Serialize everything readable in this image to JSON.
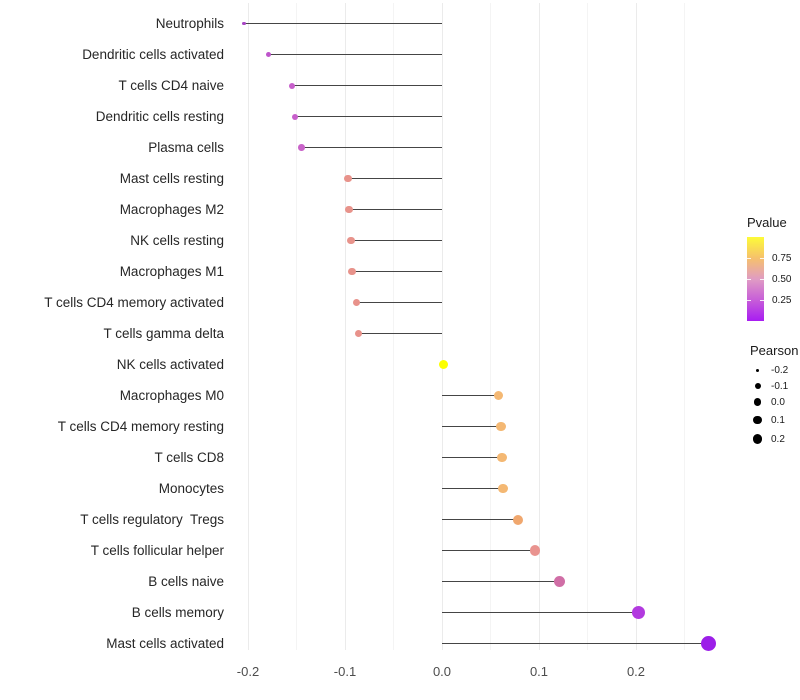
{
  "chart_data": {
    "type": "lollipop",
    "title": "",
    "xlabel": "",
    "ylabel": "",
    "xlim": [
      -0.228,
      0.3
    ],
    "grid": "vertical major+minor, light gray on white",
    "x_ticks": [
      {
        "label": "-0.2",
        "value": -0.2
      },
      {
        "label": "-0.1",
        "value": -0.1
      },
      {
        "label": "0.0",
        "value": 0.0
      },
      {
        "label": "0.1",
        "value": 0.1
      },
      {
        "label": "0.2",
        "value": 0.2
      }
    ],
    "x_minor_ticks": [
      -0.15,
      -0.05,
      0.05,
      0.15,
      0.25
    ],
    "rows": [
      {
        "label": "Neutrophils",
        "pearson": -0.204,
        "dot_color": "#a846c4",
        "dot_size": 3.5
      },
      {
        "label": "Dendritic cells activated",
        "pearson": -0.179,
        "dot_color": "#be54cb",
        "dot_size": 5
      },
      {
        "label": "T cells CD4 naive",
        "pearson": -0.155,
        "dot_color": "#c75fcb",
        "dot_size": 6
      },
      {
        "label": "Dendritic cells resting",
        "pearson": -0.152,
        "dot_color": "#c75fcb",
        "dot_size": 6
      },
      {
        "label": "Plasma cells",
        "pearson": -0.145,
        "dot_color": "#c964c9",
        "dot_size": 6.5
      },
      {
        "label": "Mast cells resting",
        "pearson": -0.097,
        "dot_color": "#e8938b",
        "dot_size": 7.5
      },
      {
        "label": "Macrophages M2",
        "pearson": -0.096,
        "dot_color": "#e8938b",
        "dot_size": 7.5
      },
      {
        "label": "NK cells resting",
        "pearson": -0.094,
        "dot_color": "#e8938b",
        "dot_size": 7.5
      },
      {
        "label": "Macrophages M1",
        "pearson": -0.093,
        "dot_color": "#e8938b",
        "dot_size": 7.5
      },
      {
        "label": "T cells CD4 memory activated",
        "pearson": -0.088,
        "dot_color": "#e8928b",
        "dot_size": 7.5
      },
      {
        "label": "T cells gamma delta",
        "pearson": -0.086,
        "dot_color": "#e8928b",
        "dot_size": 7.5
      },
      {
        "label": "NK cells activated",
        "pearson": 0.002,
        "dot_color": "#fcff00",
        "dot_size": 9
      },
      {
        "label": "Macrophages M0",
        "pearson": 0.058,
        "dot_color": "#f4b873",
        "dot_size": 9.5
      },
      {
        "label": "T cells CD4 memory resting",
        "pearson": 0.061,
        "dot_color": "#f4b873",
        "dot_size": 9.5
      },
      {
        "label": "T cells CD8",
        "pearson": 0.062,
        "dot_color": "#f4b873",
        "dot_size": 9.5
      },
      {
        "label": "Monocytes",
        "pearson": 0.063,
        "dot_color": "#f4b873",
        "dot_size": 9.5
      },
      {
        "label": "T cells regulatory  Tregs",
        "pearson": 0.078,
        "dot_color": "#f0a76e",
        "dot_size": 10
      },
      {
        "label": "T cells follicular helper",
        "pearson": 0.096,
        "dot_color": "#e9938f",
        "dot_size": 10.5
      },
      {
        "label": "B cells naive",
        "pearson": 0.121,
        "dot_color": "#d06ea6",
        "dot_size": 11.5
      },
      {
        "label": "B cells memory",
        "pearson": 0.203,
        "dot_color": "#b23adf",
        "dot_size": 13
      },
      {
        "label": "Mast cells activated",
        "pearson": 0.275,
        "dot_color": "#9c1fe8",
        "dot_size": 15
      }
    ],
    "legend_pvalue": {
      "title": "Pvalue",
      "tick_labels": [
        "0.75",
        "0.50",
        "0.25"
      ],
      "tick_positions": [
        0.75,
        0.5,
        0.25
      ],
      "gradient_stops": [
        {
          "p": 1.0,
          "color": "#fdfb38"
        },
        {
          "p": 0.75,
          "color": "#f6c16c"
        },
        {
          "p": 0.5,
          "color": "#e09cc3"
        },
        {
          "p": 0.25,
          "color": "#c75ed8"
        },
        {
          "p": 0.0,
          "color": "#a81cf2"
        }
      ]
    },
    "legend_pearson": {
      "title": "Pearson",
      "items": [
        {
          "label": "-0.2",
          "size": 3
        },
        {
          "label": "-0.1",
          "size": 6
        },
        {
          "label": "0.0",
          "size": 7.5
        },
        {
          "label": "0.1",
          "size": 8.5
        },
        {
          "label": "0.2",
          "size": 9.5
        }
      ]
    },
    "colors": {
      "stem": "#454545",
      "grid_major": "#ebebeb",
      "grid_minor": "#f4f4f4",
      "background": "#ffffff"
    }
  }
}
